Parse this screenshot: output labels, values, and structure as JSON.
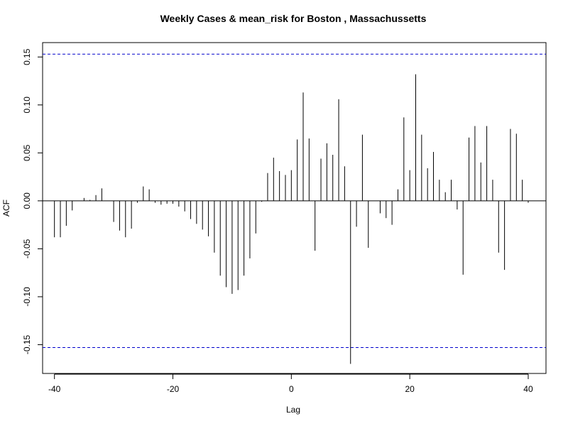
{
  "chart_data": {
    "type": "bar",
    "title": "Weekly Cases & mean_risk for Boston , Massachussetts",
    "xlabel": "Lag",
    "ylabel": "ACF",
    "xlim": [
      -42,
      43
    ],
    "ylim": [
      -0.18,
      0.165
    ],
    "xticks": [
      -40,
      -20,
      0,
      20,
      40
    ],
    "yticks": [
      -0.15,
      -0.1,
      -0.05,
      0.0,
      0.05,
      0.1,
      0.15
    ],
    "ytick_labels": [
      "-0.15",
      "-0.10",
      "-0.05",
      "0.00",
      "0.05",
      "0.10",
      "0.15"
    ],
    "confidence_bound": 0.153,
    "confidence_color": "#0000cc",
    "lags": [
      -40,
      -39,
      -38,
      -37,
      -36,
      -35,
      -34,
      -33,
      -32,
      -31,
      -30,
      -29,
      -28,
      -27,
      -26,
      -25,
      -24,
      -23,
      -22,
      -21,
      -20,
      -19,
      -18,
      -17,
      -16,
      -15,
      -14,
      -13,
      -12,
      -11,
      -10,
      -9,
      -8,
      -7,
      -6,
      -5,
      -4,
      -3,
      -2,
      -1,
      0,
      1,
      2,
      3,
      4,
      5,
      6,
      7,
      8,
      9,
      10,
      11,
      12,
      13,
      14,
      15,
      16,
      17,
      18,
      19,
      20,
      21,
      22,
      23,
      24,
      25,
      26,
      27,
      28,
      29,
      30,
      31,
      32,
      33,
      34,
      35,
      36,
      37,
      38,
      39,
      40
    ],
    "values": [
      -0.038,
      -0.038,
      -0.026,
      -0.01,
      0.0,
      0.003,
      0.001,
      0.006,
      0.013,
      0.0,
      -0.022,
      -0.031,
      -0.038,
      -0.029,
      -0.002,
      0.015,
      0.012,
      -0.002,
      -0.004,
      -0.003,
      -0.003,
      -0.006,
      -0.011,
      -0.019,
      -0.024,
      -0.03,
      -0.037,
      -0.054,
      -0.078,
      -0.09,
      -0.097,
      -0.093,
      -0.078,
      -0.06,
      -0.034,
      -0.001,
      0.029,
      0.045,
      0.031,
      0.027,
      0.032,
      0.064,
      0.113,
      0.065,
      -0.052,
      0.044,
      0.06,
      0.048,
      0.106,
      0.036,
      -0.17,
      -0.027,
      0.069,
      -0.049,
      0.0,
      -0.013,
      -0.018,
      -0.025,
      0.012,
      0.087,
      0.032,
      0.132,
      0.069,
      0.034,
      0.051,
      0.022,
      0.009,
      0.022,
      -0.009,
      -0.077,
      0.066,
      0.078,
      0.04,
      0.078,
      0.022,
      -0.054,
      -0.072,
      0.075,
      0.07,
      0.022,
      -0.002
    ]
  }
}
